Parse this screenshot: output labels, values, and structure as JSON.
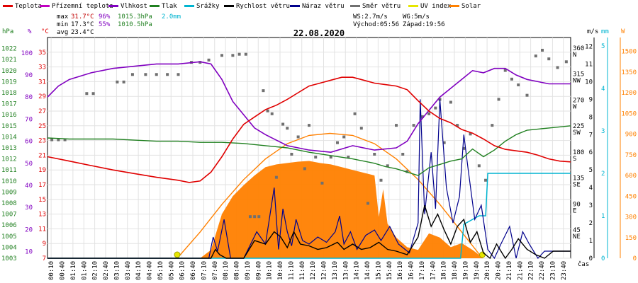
{
  "colors": {
    "temperature": "#e00000",
    "ground_temperature": "#c000c0",
    "humidity": "#8000c0",
    "pressure": "#208020",
    "precipitation": "#00b4d0",
    "wind_speed": "#000000",
    "wind_gust": "#00008c",
    "wind_direction": "#707070",
    "uv_index": "#e6e600",
    "solar": "#ff8000",
    "stats_max": "#c00000",
    "stats_min": "#000000",
    "stats_pct": "#8000c0",
    "stats_hpa": "#208020",
    "stats_mm": "#00b4d0"
  },
  "legend": [
    {
      "label": "Teplota",
      "color": "#e00000"
    },
    {
      "label": "Přízemní teplota",
      "color": "#c000c0"
    },
    {
      "label": "Vlhkost",
      "color": "#8000c0"
    },
    {
      "label": "Tlak",
      "color": "#208020"
    },
    {
      "label": "Srážky",
      "color": "#00b4d0"
    },
    {
      "label": "Rychlost větru",
      "color": "#000000"
    },
    {
      "label": "Náraz větru",
      "color": "#00008c"
    },
    {
      "label": "Směr větru",
      "color": "#707070"
    },
    {
      "label": "UV index",
      "color": "#e6e600"
    },
    {
      "label": "Solar",
      "color": "#ff8000"
    }
  ],
  "stats": {
    "max_label": "max",
    "max_temp": "31.7°C",
    "max_hum": "96%",
    "max_press": "1015.3hPa",
    "max_rain": "2.0mm",
    "min_label": "min",
    "min_temp": "17.3°C",
    "min_hum": "55%",
    "min_press": "1010.5hPa",
    "avg_label": "avg",
    "avg_temp": "23.4°C",
    "ws": "WS:2.7m/s",
    "wg": "WG:5m/s",
    "sunrise": "Východ:05:56",
    "sunset": "Západ:19:56"
  },
  "chart_data": {
    "type": "line",
    "title": "22.08.2020",
    "xlabel": "čas",
    "x_ticks": [
      "00:10",
      "00:40",
      "01:10",
      "01:40",
      "02:10",
      "02:40",
      "03:10",
      "03:40",
      "04:10",
      "04:40",
      "05:10",
      "05:40",
      "06:10",
      "06:40",
      "07:10",
      "07:40",
      "08:10",
      "08:40",
      "09:10",
      "09:40",
      "10:10",
      "10:40",
      "11:10",
      "11:40",
      "12:10",
      "12:40",
      "13:10",
      "13:40",
      "14:10",
      "14:40",
      "15:10",
      "15:40",
      "16:10",
      "16:40",
      "17:10",
      "17:40",
      "18:10",
      "18:40",
      "19:10",
      "19:40",
      "20:10",
      "20:40",
      "21:10",
      "21:40",
      "22:10",
      "22:40",
      "23:10",
      "23:40"
    ],
    "axes": {
      "hpa": {
        "label": "hPa",
        "ticks": [
          1003,
          1004,
          1005,
          1006,
          1007,
          1008,
          1009,
          1010,
          1011,
          1012,
          1013,
          1014,
          1015,
          1016,
          1017,
          1018,
          1019,
          1020,
          1021,
          1022
        ],
        "range": [
          1003,
          1023
        ]
      },
      "pct": {
        "label": "%",
        "ticks": [
          10,
          20,
          30,
          40,
          50,
          60,
          70,
          80,
          90,
          100
        ],
        "range": [
          7,
          107
        ]
      },
      "degc": {
        "label": "°C",
        "ticks": [
          7,
          9,
          11,
          13,
          15,
          17,
          19,
          21,
          23,
          25,
          27,
          29,
          31,
          33,
          35
        ],
        "range": [
          7,
          37
        ]
      },
      "deg": {
        "ticks": [
          "360",
          "315",
          "270",
          "225",
          "180",
          "135",
          "90",
          "45"
        ],
        "letters": [
          "N",
          "NW",
          "W",
          "SW",
          "S",
          "SE",
          "E",
          "NE"
        ],
        "range": [
          0,
          382
        ]
      },
      "ms": {
        "label": "m/s",
        "ticks": [
          0,
          1,
          2,
          3,
          4,
          5,
          6,
          7,
          8,
          9,
          10,
          11,
          12
        ],
        "range": [
          0,
          12.5
        ]
      },
      "mm": {
        "label": "mm",
        "ticks": [
          0,
          1,
          2,
          3,
          4,
          5
        ],
        "range": [
          0,
          5.2
        ]
      },
      "w": {
        "label": "W",
        "ticks": [
          0,
          150,
          300,
          450,
          600,
          750,
          900,
          1050,
          1200,
          1350,
          1500
        ],
        "range": [
          0,
          1600
        ]
      }
    },
    "series": [
      {
        "name": "Teplota",
        "axis": "degc",
        "x": [
          0,
          1,
          2,
          3,
          4,
          5,
          6,
          6.5,
          7,
          7.5,
          8,
          8.5,
          9,
          9.5,
          10,
          10.5,
          11,
          11.5,
          12,
          12.5,
          13,
          13.5,
          14,
          14.5,
          15,
          15.5,
          16,
          16.5,
          17,
          17.5,
          18,
          18.5,
          19,
          19.5,
          20,
          20.5,
          21,
          21.5,
          22,
          22.5,
          23,
          23.5,
          24
        ],
        "y": [
          20.8,
          20.2,
          19.6,
          19,
          18.5,
          18,
          17.6,
          17.3,
          17.5,
          18.7,
          20.8,
          23.2,
          25.2,
          26.2,
          27.2,
          27.8,
          28.6,
          29.5,
          30.4,
          30.8,
          31.2,
          31.6,
          31.6,
          31.2,
          30.8,
          30.6,
          30.4,
          29.9,
          28.4,
          27,
          26,
          25.4,
          24.5,
          24,
          23.2,
          22.3,
          21.8,
          21.6,
          21.4,
          21,
          20.5,
          20.2,
          20.1
        ]
      },
      {
        "name": "Vlhkost",
        "axis": "pct",
        "x": [
          0,
          0.5,
          1,
          2,
          3,
          4,
          5,
          6,
          7,
          7.5,
          8,
          8.5,
          9,
          9.5,
          10,
          11,
          12,
          13,
          14,
          15,
          16,
          16.5,
          17,
          17.5,
          18,
          18.5,
          19,
          19.5,
          20,
          20.5,
          21,
          21.5,
          22,
          22.5,
          23,
          24
        ],
        "y": [
          80,
          85,
          88,
          91,
          93,
          94,
          95,
          95,
          96,
          95,
          88,
          78,
          72,
          66,
          63,
          58,
          56,
          55,
          58,
          56,
          57,
          60,
          68,
          74,
          80,
          84,
          88,
          92,
          91,
          93,
          93,
          90,
          88,
          87,
          86,
          86
        ]
      },
      {
        "name": "Tlak",
        "axis": "hpa",
        "x": [
          0,
          1,
          2,
          3,
          4,
          5,
          6,
          7,
          8,
          9,
          10,
          11,
          12,
          13,
          14,
          15,
          15.5,
          16,
          16.5,
          17,
          17.5,
          18,
          18.5,
          19,
          19.5,
          20,
          20.5,
          21,
          21.5,
          22,
          23,
          24
        ],
        "y": [
          1013.9,
          1013.8,
          1013.8,
          1013.8,
          1013.7,
          1013.6,
          1013.6,
          1013.5,
          1013.5,
          1013.4,
          1013.2,
          1013.0,
          1012.6,
          1012.3,
          1012.0,
          1011.6,
          1011.3,
          1011.1,
          1010.8,
          1010.5,
          1011.2,
          1011.5,
          1011.8,
          1012,
          1012.9,
          1012.2,
          1012.8,
          1013.6,
          1014.2,
          1014.6,
          1014.8,
          1015.0
        ]
      },
      {
        "name": "Srážky",
        "axis": "mm",
        "x": [
          0,
          18.95,
          19.1,
          19.8,
          20.1,
          20.2,
          24
        ],
        "y": [
          0,
          0,
          0.8,
          1.0,
          1.0,
          2.0,
          2.0
        ]
      },
      {
        "name": "Rychlost větru",
        "axis": "ms",
        "x": [
          0,
          7.5,
          7.7,
          7.9,
          8.2,
          9,
          9.5,
          10,
          10.4,
          10.7,
          11,
          11.3,
          11.6,
          12,
          12.4,
          12.8,
          13.3,
          13.6,
          14,
          14.4,
          14.8,
          15.2,
          15.6,
          16,
          16.5,
          17,
          17.3,
          17.6,
          17.9,
          18.2,
          18.5,
          18.8,
          19.1,
          19.4,
          19.7,
          20,
          20.3,
          20.6,
          21,
          21.3,
          21.6,
          22,
          22.4,
          22.8,
          23.2,
          23.6,
          24
        ],
        "y": [
          0,
          0,
          0.5,
          0.2,
          0,
          0,
          1,
          0.8,
          1.5,
          1.2,
          0.6,
          1.5,
          0.8,
          0.7,
          0.5,
          0.6,
          0.9,
          0.5,
          0.8,
          0.5,
          0.6,
          0.9,
          0.5,
          0.4,
          0.2,
          1.2,
          3,
          1.8,
          2.5,
          1.6,
          0.8,
          1.8,
          2.2,
          0.9,
          1.5,
          0.3,
          0,
          0.8,
          0,
          0.5,
          1.1,
          0.5,
          0.2,
          0,
          0.4,
          0.4,
          0.4
        ]
      },
      {
        "name": "Náraz větru",
        "axis": "ms",
        "x": [
          0,
          7.4,
          7.6,
          7.8,
          8.1,
          8.4,
          9,
          9.6,
          10,
          10.4,
          10.6,
          10.8,
          11,
          11.2,
          11.4,
          11.7,
          12,
          12.4,
          12.8,
          13.2,
          13.4,
          13.6,
          13.9,
          14.2,
          14.6,
          15,
          15.3,
          15.7,
          16.1,
          16.6,
          17,
          17.1,
          17.3,
          17.6,
          17.8,
          18,
          18.3,
          18.6,
          18.9,
          19.1,
          19.3,
          19.6,
          19.9,
          20.2,
          20.5,
          20.8,
          21.2,
          21.5,
          21.8,
          22.1,
          22.5,
          22.8,
          23.2,
          23.6,
          24
        ],
        "y": [
          0,
          0,
          1.2,
          0.4,
          2.2,
          0,
          0,
          1.5,
          0.8,
          4,
          0.5,
          2.8,
          1.5,
          0.7,
          2.2,
          1,
          0.8,
          1.2,
          0.9,
          1.5,
          2.4,
          0.8,
          1.5,
          0.5,
          1.3,
          1.6,
          1,
          1.8,
          0.8,
          0.3,
          2,
          9,
          2.5,
          6,
          2.8,
          9,
          4,
          2,
          3.5,
          7,
          5,
          2.2,
          3,
          0.5,
          0,
          0.8,
          1.8,
          0,
          1.5,
          0.8,
          0,
          0.4,
          0.4,
          0.4,
          0.4
        ]
      },
      {
        "name": "Směr větru",
        "axis": "deg",
        "type": "scatter",
        "points": [
          [
            0.2,
            205
          ],
          [
            0.5,
            205
          ],
          [
            0.8,
            205
          ],
          [
            1.8,
            285
          ],
          [
            2.1,
            285
          ],
          [
            3.2,
            305
          ],
          [
            3.5,
            305
          ],
          [
            3.9,
            318
          ],
          [
            4.5,
            318
          ],
          [
            5,
            318
          ],
          [
            5.5,
            318
          ],
          [
            6,
            318
          ],
          [
            6.6,
            339
          ],
          [
            7,
            339
          ],
          [
            7.4,
            343
          ],
          [
            8,
            351
          ],
          [
            8.5,
            351
          ],
          [
            8.8,
            353
          ],
          [
            9.1,
            353
          ],
          [
            9.3,
            72
          ],
          [
            9.5,
            72
          ],
          [
            9.7,
            72
          ],
          [
            9.9,
            290
          ],
          [
            10.1,
            255
          ],
          [
            10.3,
            250
          ],
          [
            10.5,
            140
          ],
          [
            10.8,
            232
          ],
          [
            11,
            225
          ],
          [
            11.2,
            180
          ],
          [
            11.5,
            210
          ],
          [
            11.8,
            155
          ],
          [
            12,
            230
          ],
          [
            12.3,
            175
          ],
          [
            12.6,
            130
          ],
          [
            13,
            175
          ],
          [
            13.3,
            200
          ],
          [
            13.6,
            210
          ],
          [
            13.8,
            175
          ],
          [
            14.1,
            250
          ],
          [
            14.4,
            225
          ],
          [
            14.7,
            95
          ],
          [
            15,
            180
          ],
          [
            15.3,
            135
          ],
          [
            15.6,
            160
          ],
          [
            16,
            230
          ],
          [
            16.3,
            180
          ],
          [
            16.5,
            150
          ],
          [
            16.8,
            230
          ],
          [
            17.2,
            245
          ],
          [
            17.5,
            250
          ],
          [
            17.8,
            260
          ],
          [
            18,
            275
          ],
          [
            18.2,
            200
          ],
          [
            18.5,
            270
          ],
          [
            18.8,
            230
          ],
          [
            19.1,
            190
          ],
          [
            19.4,
            215
          ],
          [
            19.8,
            160
          ],
          [
            20.1,
            135
          ],
          [
            20.4,
            230
          ],
          [
            20.7,
            275
          ],
          [
            21,
            325
          ],
          [
            21.3,
            310
          ],
          [
            21.6,
            300
          ],
          [
            22,
            282
          ],
          [
            22.4,
            350
          ],
          [
            22.7,
            360
          ],
          [
            23,
            345
          ],
          [
            23.4,
            330
          ],
          [
            23.8,
            340
          ]
        ]
      },
      {
        "name": "Solar",
        "axis": "w",
        "x": [
          7,
          7.5,
          8,
          8.5,
          9,
          9.5,
          10,
          10.5,
          11,
          11.5,
          12,
          12.5,
          13,
          13.5,
          14,
          14.5,
          15,
          15.2,
          15.4,
          15.6,
          16,
          16.5,
          17,
          17.5,
          18,
          18.5,
          19,
          19.5,
          20
        ],
        "y": [
          0,
          60,
          320,
          450,
          530,
          600,
          660,
          680,
          690,
          700,
          705,
          690,
          680,
          660,
          640,
          620,
          600,
          300,
          500,
          250,
          150,
          80,
          60,
          180,
          150,
          80,
          110,
          60,
          0
        ]
      },
      {
        "name": "Solar",
        "axis": "w",
        "kind": "theoretical",
        "x": [
          5.95,
          7,
          8,
          9,
          10,
          11,
          12,
          12.96,
          14,
          15,
          16,
          17,
          18,
          19,
          19.95
        ],
        "y": [
          0,
          190,
          390,
          570,
          720,
          830,
          890,
          905,
          890,
          830,
          720,
          570,
          390,
          190,
          0
        ]
      }
    ]
  }
}
